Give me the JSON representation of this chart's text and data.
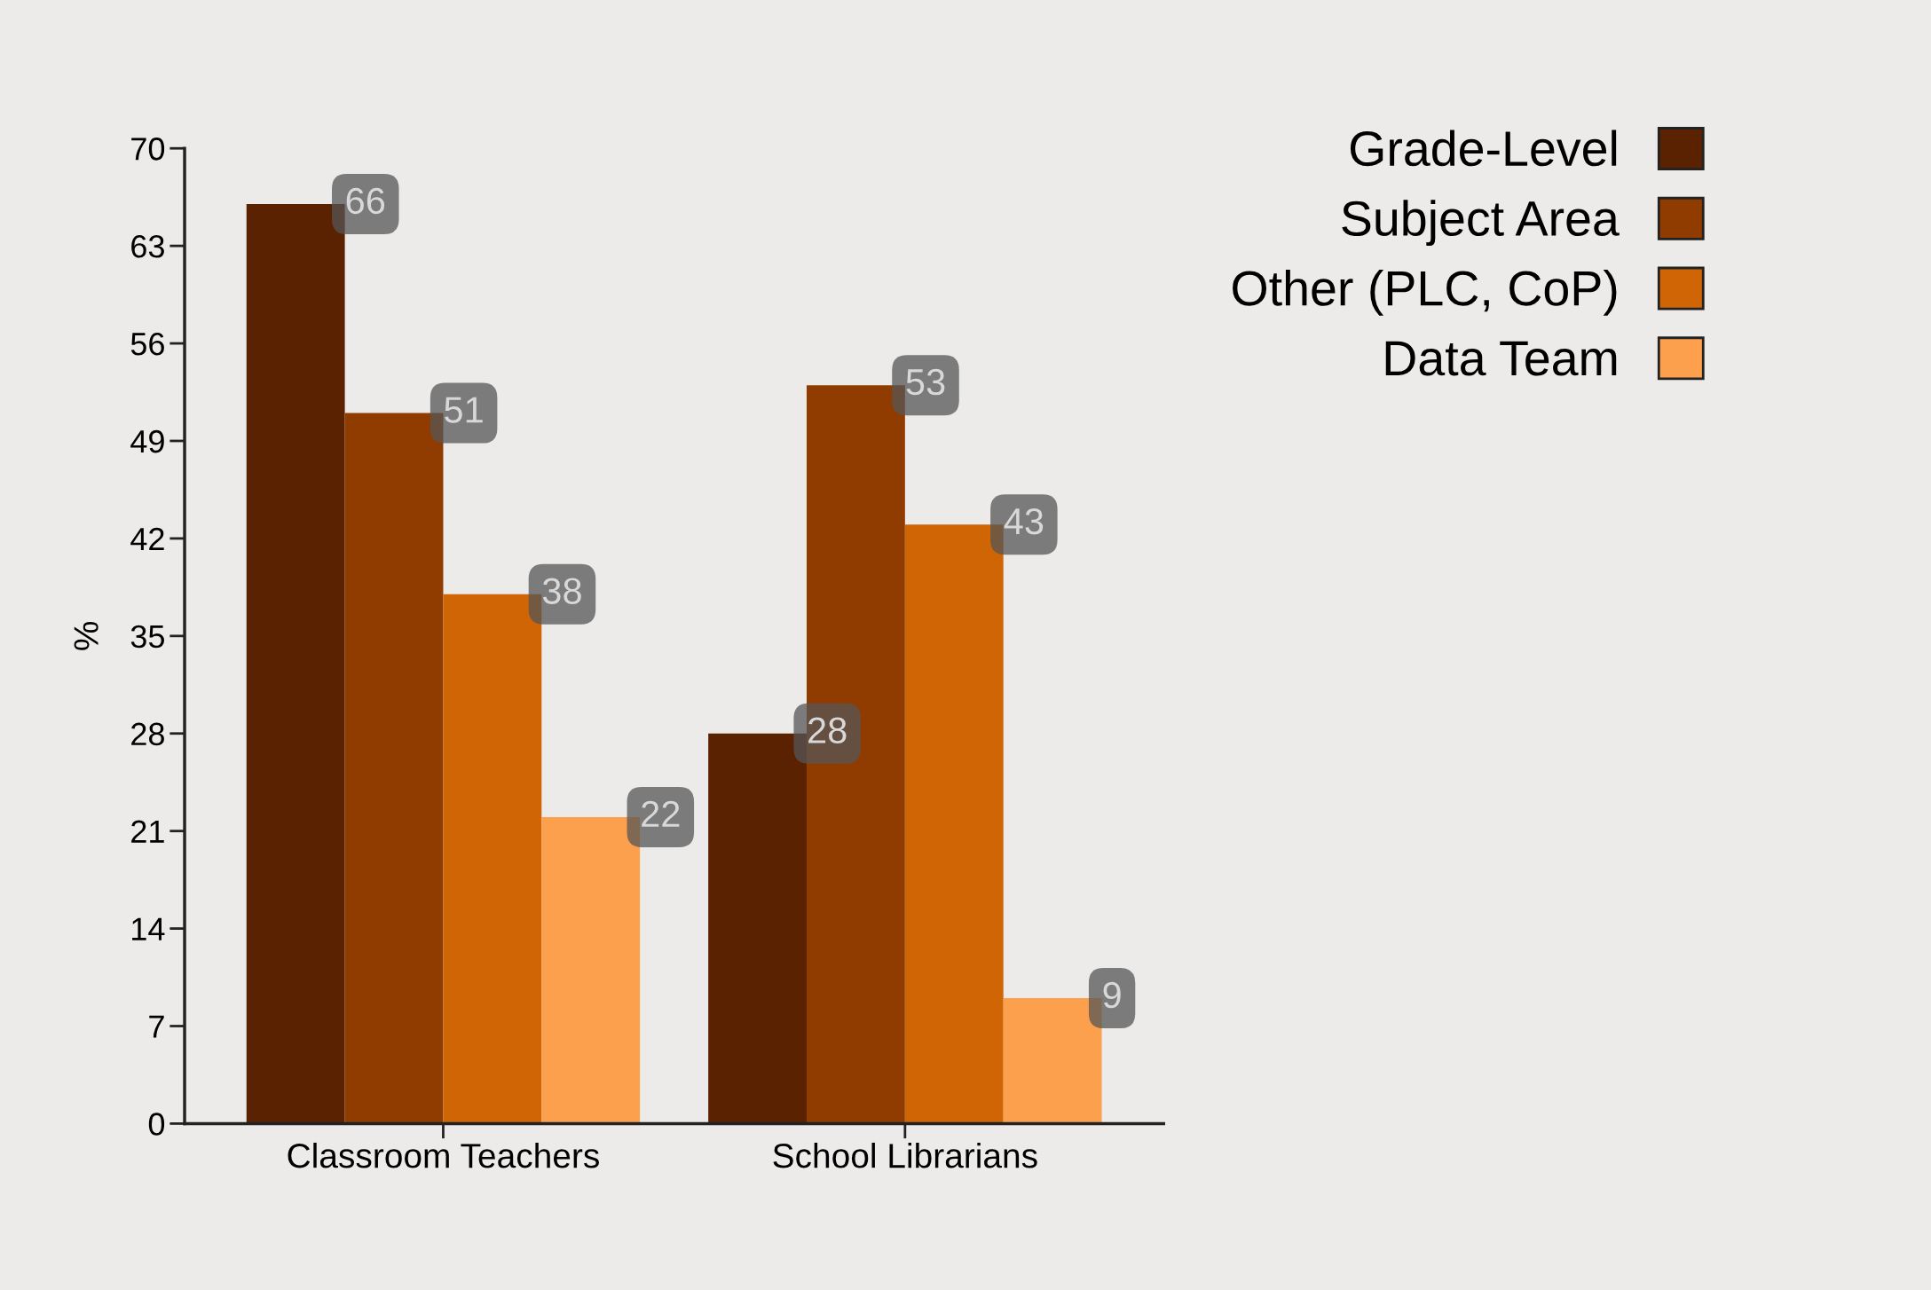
{
  "chart_data": {
    "type": "bar",
    "ylabel": "%",
    "categories": [
      "Classroom Teachers",
      "School Librarians"
    ],
    "series": [
      {
        "name": "Grade-Level",
        "color": "#5a2200",
        "values": [
          66,
          28
        ]
      },
      {
        "name": "Subject Area",
        "color": "#903c00",
        "values": [
          51,
          53
        ]
      },
      {
        "name": "Other (PLC, CoP)",
        "color": "#d06506",
        "values": [
          38,
          43
        ]
      },
      {
        "name": "Data Team",
        "color": "#fda04e",
        "values": [
          22,
          9
        ]
      }
    ],
    "ylim": [
      0,
      70
    ],
    "yticks": [
      0,
      7,
      14,
      21,
      28,
      35,
      42,
      49,
      56,
      63,
      70
    ],
    "data_labels": true,
    "grid": false,
    "legend": "top right"
  }
}
